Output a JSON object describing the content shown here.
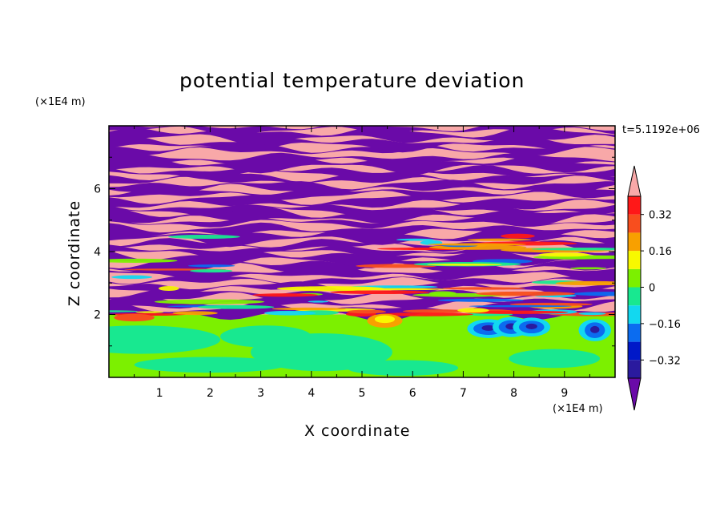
{
  "chart_data": {
    "type": "heatmap",
    "title": "potential temperature deviation",
    "xlabel": "X coordinate",
    "ylabel": "Z coordinate",
    "x_unit": "(×1E4 m)",
    "z_unit": "(×1E4 m)",
    "time_label": "t=5.1192e+06",
    "xlim": [
      0,
      10
    ],
    "ylim": [
      0,
      8
    ],
    "x_ticks": [
      "1",
      "2",
      "3",
      "4",
      "5",
      "6",
      "7",
      "8",
      "9"
    ],
    "y_ticks": [
      "2",
      "4",
      "6"
    ],
    "colorbar": {
      "levels": [
        -0.4,
        -0.32,
        -0.24,
        -0.16,
        -0.08,
        0,
        0.08,
        0.16,
        0.24,
        0.32,
        0.4
      ],
      "tick_labels": [
        "0.32",
        "0.16",
        "0",
        "−0.16",
        "−0.32"
      ],
      "tick_values": [
        0.32,
        0.16,
        0,
        -0.16,
        -0.32
      ],
      "colors": [
        "#6a0aa8",
        "#2a1a9e",
        "#0018c8",
        "#0b6cf0",
        "#12d8f0",
        "#18e890",
        "#7cf000",
        "#f8f800",
        "#f8a000",
        "#f84e1e",
        "#ff1818",
        "#f8a8a8"
      ]
    }
  }
}
